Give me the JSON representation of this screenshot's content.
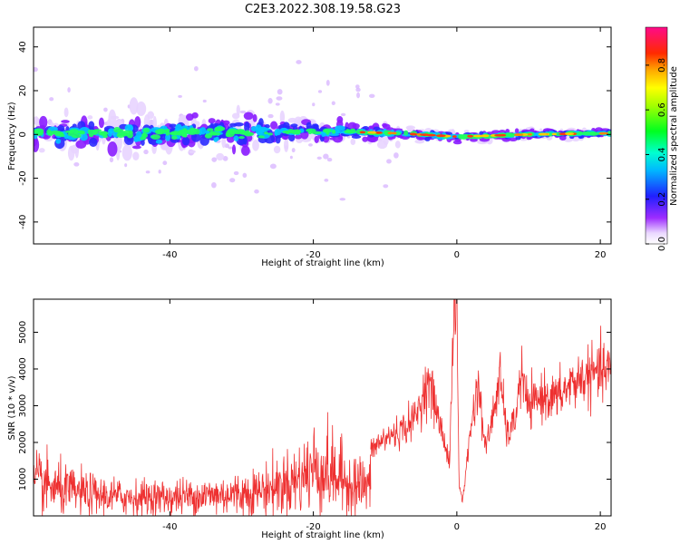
{
  "figure_title": "C2E3.2022.308.19.58.G23",
  "chart_data": [
    {
      "type": "heatmap",
      "xlabel": "Height of straight line (km)",
      "ylabel": "Frequency (Hz)",
      "xlim": [
        -59,
        21.5
      ],
      "ylim": [
        -50,
        49
      ],
      "xticks": [
        -40,
        -20,
        0,
        20
      ],
      "yticks": [
        -40,
        -20,
        0,
        20,
        40
      ],
      "colorbar": {
        "label": "Normalized spectral amplitude",
        "range": [
          0,
          0.97
        ],
        "ticks": [
          0.0,
          0.2,
          0.4,
          0.6,
          0.8
        ],
        "colormap": "rainbow (white → violet → blue → cyan → green → yellow → orange → red → pink)"
      },
      "ridge": [
        {
          "x": -58,
          "freq": 1.0,
          "width": 6.0
        },
        {
          "x": -45,
          "freq": 0.0,
          "width": 6.5
        },
        {
          "x": -30,
          "freq": 1.0,
          "width": 6.0
        },
        {
          "x": -20,
          "freq": 1.5,
          "width": 4.0
        },
        {
          "x": -13,
          "freq": 1.0,
          "width": 3.0
        },
        {
          "x": -8,
          "freq": 0.5,
          "width": 2.0
        },
        {
          "x": 0,
          "freq": -1.0,
          "width": 2.0
        },
        {
          "x": 10,
          "freq": 0.0,
          "width": 1.5
        },
        {
          "x": 21,
          "freq": 0.5,
          "width": 1.5
        }
      ]
    },
    {
      "type": "line",
      "xlabel": "Height of straight line (km)",
      "ylabel": "SNR (10 * v/v)",
      "xlim": [
        -59,
        21.5
      ],
      "ylim": [
        0,
        5900
      ],
      "xticks": [
        -40,
        -20,
        0,
        20
      ],
      "yticks": [
        1000,
        2000,
        3000,
        4000,
        5000
      ],
      "series": [
        {
          "color": "#ee3030",
          "segments": [
            {
              "x": [
                -59,
                -55,
                -50,
                -45,
                -40,
                -35,
                -30,
                -27,
                -25,
                -22,
                -20,
                -18,
                -15,
                -12
              ],
              "y": [
                900,
                700,
                550,
                500,
                500,
                550,
                600,
                700,
                800,
                1000,
                1300,
                1200,
                900,
                800
              ]
            },
            {
              "x": [
                -12,
                -10,
                -8,
                -6,
                -5,
                -4,
                -3,
                -2,
                -1,
                -0.5,
                0,
                0.3,
                0.8,
                2,
                3,
                4,
                5,
                6,
                7,
                8,
                9,
                10,
                12,
                14,
                16,
                18,
                20,
                21.5
              ],
              "y": [
                1800,
                2100,
                2300,
                2600,
                3100,
                3700,
                3000,
                2200,
                1500,
                5200,
                5800,
                900,
                400,
                2500,
                3600,
                1800,
                2700,
                3800,
                2200,
                2500,
                3900,
                2900,
                3300,
                3200,
                3600,
                3800,
                3900,
                4000
              ]
            }
          ]
        }
      ]
    }
  ]
}
